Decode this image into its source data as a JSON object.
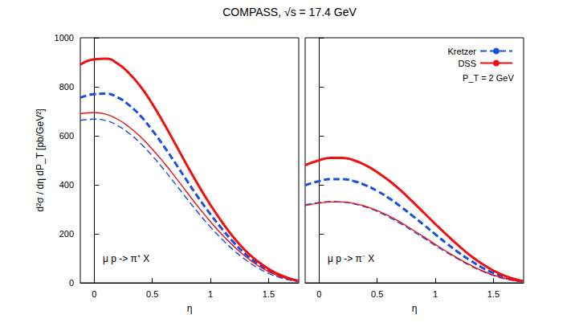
{
  "chart_data": [
    {
      "type": "line",
      "title": "COMPASS, √s = 17.4 GeV",
      "annotation": "μ p -> π⁺ X",
      "xlabel": "η",
      "ylabel": "d²σ / dη dP_T [pb/GeV²]",
      "xlim": [
        -0.12,
        1.76
      ],
      "xticks": [
        0,
        0.5,
        1,
        1.5
      ],
      "ylim": [
        0,
        1000
      ],
      "yticks": [
        0,
        200,
        400,
        600,
        800,
        1000
      ],
      "tick_labels": true,
      "x": [
        -0.12,
        0,
        0.1,
        0.2,
        0.3,
        0.4,
        0.5,
        0.6,
        0.7,
        0.8,
        0.9,
        1.0,
        1.1,
        1.2,
        1.3,
        1.4,
        1.5,
        1.6,
        1.7,
        1.76
      ],
      "series": [
        {
          "name": "Kretzer",
          "color": "#1a4fe0",
          "line_style": "dashed",
          "values": [
            755,
            770,
            772,
            757,
            725,
            680,
            622,
            557,
            487,
            415,
            345,
            280,
            220,
            165,
            118,
            80,
            50,
            28,
            13,
            7
          ]
        },
        {
          "name": "DSS",
          "color": "#ee1111",
          "line_style": "solid",
          "values": [
            890,
            912,
            915,
            895,
            855,
            800,
            730,
            650,
            565,
            478,
            395,
            318,
            248,
            185,
            132,
            90,
            57,
            32,
            15,
            8
          ]
        },
        {
          "name": "Kretzer",
          "color": "#1a4fe0",
          "line_style": "thin-dashed",
          "values": [
            663,
            668,
            662,
            642,
            610,
            568,
            518,
            462,
            402,
            342,
            283,
            228,
            178,
            133,
            95,
            63,
            39,
            21,
            10,
            5
          ]
        },
        {
          "name": "DSS",
          "color": "#ee1111",
          "line_style": "thin-solid",
          "values": [
            690,
            695,
            688,
            668,
            636,
            595,
            545,
            490,
            430,
            368,
            307,
            250,
            197,
            150,
            108,
            73,
            46,
            26,
            12,
            6
          ]
        }
      ]
    },
    {
      "type": "line",
      "annotation": "μ p -> π⁻ X",
      "legend_note": "P_T = 2 GeV",
      "legend": "top-right",
      "xlabel": "η",
      "xlim": [
        -0.12,
        1.76
      ],
      "xticks": [
        0,
        0.5,
        1,
        1.5
      ],
      "ylim": [
        0,
        1000
      ],
      "yticks": [
        0,
        200,
        400,
        600,
        800,
        1000
      ],
      "tick_labels": "x",
      "x": [
        -0.12,
        0,
        0.1,
        0.2,
        0.3,
        0.4,
        0.5,
        0.6,
        0.7,
        0.8,
        0.9,
        1.0,
        1.1,
        1.2,
        1.3,
        1.4,
        1.5,
        1.6,
        1.7,
        1.76
      ],
      "series": [
        {
          "name": "Kretzer",
          "color": "#1a4fe0",
          "line_style": "dashed",
          "values": [
            398,
            415,
            423,
            423,
            415,
            398,
            375,
            346,
            312,
            275,
            237,
            198,
            160,
            124,
            92,
            63,
            40,
            22,
            10,
            5
          ]
        },
        {
          "name": "DSS",
          "color": "#ee1111",
          "line_style": "solid",
          "values": [
            480,
            500,
            510,
            510,
            500,
            480,
            452,
            418,
            378,
            333,
            287,
            240,
            195,
            152,
            112,
            78,
            50,
            28,
            13,
            7
          ]
        },
        {
          "name": "Kretzer",
          "color": "#1a4fe0",
          "line_style": "thin-dashed",
          "values": [
            318,
            328,
            332,
            330,
            322,
            309,
            291,
            268,
            242,
            213,
            183,
            152,
            123,
            96,
            70,
            48,
            30,
            16,
            8,
            4
          ]
        },
        {
          "name": "DSS",
          "color": "#ee1111",
          "line_style": "thin-solid",
          "values": [
            315,
            325,
            330,
            330,
            324,
            312,
            295,
            273,
            247,
            218,
            188,
            157,
            127,
            99,
            73,
            50,
            32,
            18,
            8,
            4
          ]
        }
      ]
    }
  ]
}
